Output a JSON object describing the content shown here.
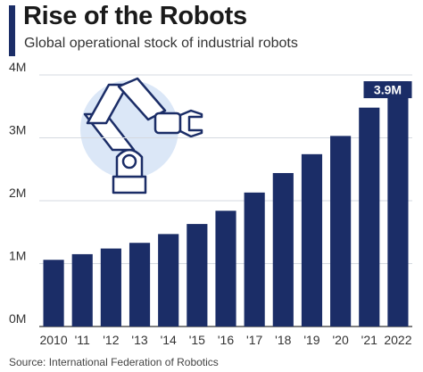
{
  "header": {
    "title": "Rise of the Robots",
    "subtitle": "Global operational stock of industrial robots"
  },
  "footer": {
    "source": "Source: International Federation of Robotics"
  },
  "colors": {
    "bar": "#1b2d67",
    "grid": "#d5d9e0",
    "illustration_bg": "#dbe7f7",
    "illustration_stroke": "#1b2d67"
  },
  "chart_data": {
    "type": "bar",
    "title": "Rise of the Robots",
    "subtitle": "Global operational stock of industrial robots",
    "categories": [
      "2010",
      "'11",
      "'12",
      "'13",
      "'14",
      "'15",
      "'16",
      "'17",
      "'18",
      "'19",
      "'20",
      "'21",
      "2022"
    ],
    "values": [
      1.06,
      1.15,
      1.24,
      1.33,
      1.47,
      1.63,
      1.84,
      2.13,
      2.44,
      2.74,
      3.03,
      3.48,
      3.9
    ],
    "unit": "M",
    "ylim": [
      0,
      4
    ],
    "yticks": [
      0,
      1,
      2,
      3,
      4
    ],
    "ytick_labels": [
      "0M",
      "1M",
      "2M",
      "3M",
      "4M"
    ],
    "grid": true,
    "annotations": [
      {
        "category": "2022",
        "label": "3.9M"
      }
    ]
  }
}
